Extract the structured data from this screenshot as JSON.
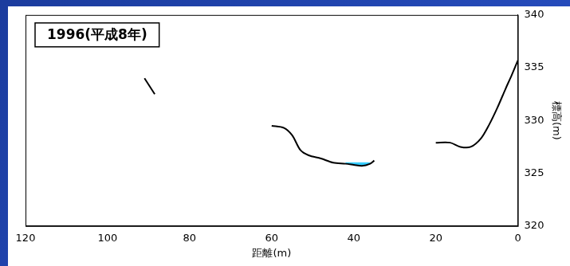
{
  "chart_data": {
    "type": "line",
    "title": "1996(平成8年)",
    "x_label": "距離(m)",
    "y_label": "標高(m)",
    "x": [
      91,
      88.5,
      75,
      60,
      57,
      55,
      53,
      51,
      48,
      45,
      42,
      40,
      38,
      36,
      35,
      28,
      20,
      16.5,
      14,
      11.5,
      9,
      7,
      5,
      3,
      1.5,
      0
    ],
    "series": [
      {
        "color": "#000000",
        "type": "line",
        "line_style": "solid",
        "marker": "none",
        "values": [
          334.0,
          332.5,
          null,
          329.5,
          329.3,
          328.6,
          327.2,
          326.7,
          326.4,
          326.0,
          325.9,
          325.8,
          325.7,
          325.9,
          326.2,
          null,
          327.9,
          327.9,
          327.5,
          327.5,
          328.3,
          329.6,
          331.2,
          333.0,
          334.3,
          335.7
        ]
      },
      {
        "color": "#33ccff",
        "type": "area",
        "line_style": "solid",
        "marker": "none",
        "values": [
          null,
          null,
          null,
          null,
          null,
          null,
          null,
          null,
          null,
          null,
          326.0,
          326.0,
          326.0,
          326.0,
          null,
          null,
          null,
          null,
          null,
          null,
          null,
          null,
          null,
          null,
          null,
          null
        ]
      }
    ],
    "xlim": [
      120,
      0
    ],
    "xticks": [
      120,
      100,
      80,
      60,
      40,
      20,
      0
    ],
    "ylim": [
      320,
      340
    ],
    "yticks": [
      320,
      325,
      330,
      335,
      340
    ],
    "grid": false
  }
}
